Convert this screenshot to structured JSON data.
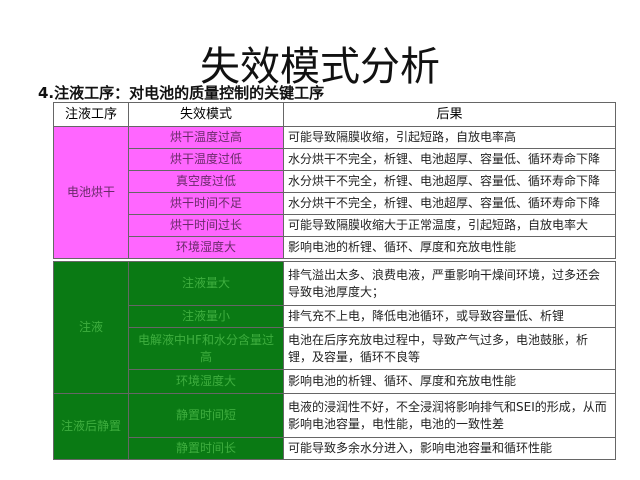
{
  "title": "失效模式分析",
  "subtitle": "4.注液工序：对电池的质量控制的关键工序",
  "colors": {
    "pink": "#ff66ff",
    "green": "#0a7a14"
  },
  "table": {
    "headers": [
      "注液工序",
      "失效模式",
      "后果"
    ],
    "groups": [
      {
        "process": "电池烘干",
        "rows": [
          {
            "mode": "烘干温度过高",
            "result": "可能导致隔膜收缩，引起短路，自放电率高"
          },
          {
            "mode": "烘干温度过低",
            "result": "水分烘干不完全，析锂、电池超厚、容量低、循环寿命下降"
          },
          {
            "mode": "真空度过低",
            "result": "水分烘干不完全，析锂、电池超厚、容量低、循环寿命下降"
          },
          {
            "mode": "烘干时间不足",
            "result": "水分烘干不完全，析锂、电池超厚、容量低、循环寿命下降"
          },
          {
            "mode": "烘干时间过长",
            "result": "可能导致隔膜收缩大于正常温度，引起短路，自放电率大"
          },
          {
            "mode": "环境湿度大",
            "result": "影响电池的析锂、循环、厚度和充放电性能"
          }
        ]
      },
      {
        "process": "注液",
        "rows": [
          {
            "mode": "注液量大",
            "result": "排气溢出太多、浪费电液，严重影响干燥间环境，过多还会导致电池厚度大；"
          },
          {
            "mode": "注液量小",
            "result": "排气充不上电，降低电池循环，或导致容量低、析锂"
          },
          {
            "mode": "电解液中HF和水分含量过高",
            "result": "电池在后序充放电过程中，导致产气过多，电池鼓胀，析锂，及容量，循环不良等"
          },
          {
            "mode": "环境湿度大",
            "result": "影响电池的析锂、循环、厚度和充放电性能"
          }
        ]
      },
      {
        "process": "注液后静置",
        "rows": [
          {
            "mode": "静置时间短",
            "result": "电液的浸润性不好，不全浸润将影响排气和SEI的形成，从而影响电池容量，电性能，电池的一致性差"
          },
          {
            "mode": "静置时间长",
            "result": "可能导致多余水分进入，影响电池容量和循环性能"
          }
        ]
      }
    ]
  }
}
